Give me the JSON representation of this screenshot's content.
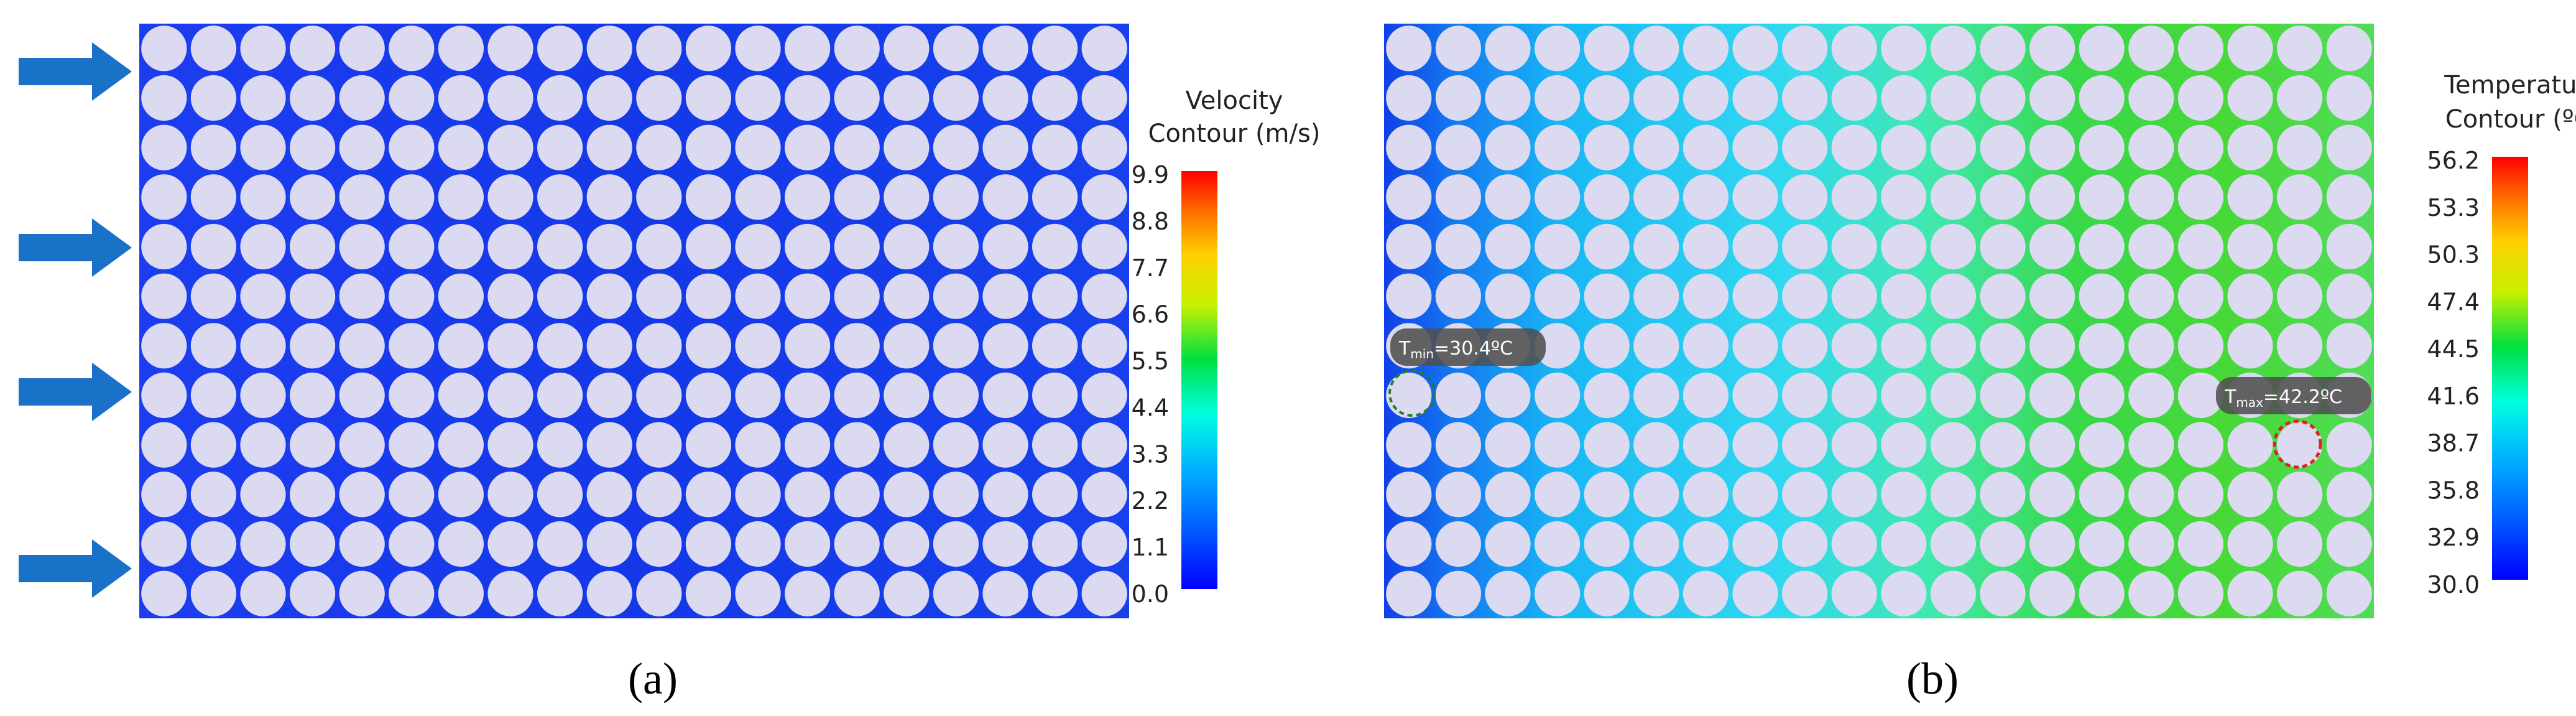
{
  "panel_a": {
    "caption": "(a)",
    "legend_title_line1": "Velocity",
    "legend_title_line2": "Contour (m/s)",
    "ticks": [
      "9.9",
      "8.8",
      "7.7",
      "6.6",
      "5.5",
      "4.4",
      "3.3",
      "2.2",
      "1.1",
      "0.0"
    ],
    "grid": {
      "rows": 12,
      "cols": 20
    }
  },
  "panel_b": {
    "caption": "(b)",
    "legend_title_line1": "Temperature",
    "legend_title_line2": "Contour (ºC)",
    "ticks": [
      "56.2",
      "53.3",
      "50.3",
      "47.4",
      "44.5",
      "41.6",
      "38.7",
      "35.8",
      "32.9",
      "30.0"
    ],
    "grid": {
      "rows": 12,
      "cols": 20
    },
    "tmin": {
      "prefix": "T",
      "sub": "min",
      "value": "=30.4ºC"
    },
    "tmax": {
      "prefix": "T",
      "sub": "max",
      "value": "=42.2ºC"
    }
  },
  "colors": {
    "cell": "#dcdaf0",
    "background_low": "#1030e0",
    "arrow": "#1a72c8"
  }
}
